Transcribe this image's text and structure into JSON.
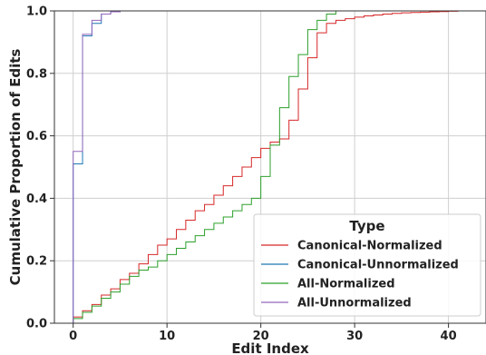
{
  "chart_data": {
    "type": "line",
    "step": true,
    "xlabel": "Edit Index",
    "ylabel": "Cumulative Proportion of Edits",
    "xlim": [
      -2,
      44
    ],
    "ylim": [
      0,
      1.0
    ],
    "xticks": [
      0,
      10,
      20,
      30,
      40
    ],
    "yticks": [
      0.0,
      0.2,
      0.4,
      0.6,
      0.8,
      1.0
    ],
    "xtick_labels": [
      "0",
      "10",
      "20",
      "30",
      "40"
    ],
    "ytick_labels": [
      "0.0",
      "0.2",
      "0.4",
      "0.6",
      "0.8",
      "1.0"
    ],
    "grid": true,
    "legend": {
      "title": "Type",
      "position": "lower-right"
    },
    "series": [
      {
        "name": "Canonical-Normalized",
        "color": "#d62728",
        "x": [
          0,
          1,
          2,
          3,
          4,
          5,
          6,
          7,
          8,
          9,
          10,
          11,
          12,
          13,
          14,
          15,
          16,
          17,
          18,
          19,
          20,
          21,
          22,
          23,
          24,
          25,
          26,
          27,
          28,
          29,
          30,
          31,
          32,
          33,
          34,
          35,
          36,
          37,
          38,
          39,
          40,
          41
        ],
        "y": [
          0.02,
          0.04,
          0.06,
          0.09,
          0.11,
          0.14,
          0.16,
          0.19,
          0.22,
          0.25,
          0.27,
          0.3,
          0.33,
          0.36,
          0.38,
          0.41,
          0.44,
          0.47,
          0.5,
          0.53,
          0.56,
          0.58,
          0.59,
          0.65,
          0.75,
          0.85,
          0.93,
          0.96,
          0.97,
          0.975,
          0.98,
          0.984,
          0.987,
          0.99,
          0.992,
          0.994,
          0.995,
          0.996,
          0.997,
          0.998,
          0.999,
          1.0
        ]
      },
      {
        "name": "Canonical-Unnormalized",
        "color": "#1f77b4",
        "x": [
          0,
          1,
          2,
          3,
          4,
          5
        ],
        "y": [
          0.51,
          0.92,
          0.96,
          0.99,
          0.997,
          1.0
        ]
      },
      {
        "name": "All-Normalized",
        "color": "#2ca02c",
        "x": [
          0,
          1,
          2,
          3,
          4,
          5,
          6,
          7,
          8,
          9,
          10,
          11,
          12,
          13,
          14,
          15,
          16,
          17,
          18,
          19,
          20,
          21,
          22,
          23,
          24,
          25,
          26,
          27,
          28
        ],
        "y": [
          0.015,
          0.035,
          0.055,
          0.08,
          0.1,
          0.125,
          0.15,
          0.17,
          0.18,
          0.2,
          0.22,
          0.24,
          0.26,
          0.28,
          0.3,
          0.32,
          0.34,
          0.36,
          0.38,
          0.4,
          0.47,
          0.57,
          0.69,
          0.79,
          0.86,
          0.94,
          0.97,
          0.99,
          1.0
        ]
      },
      {
        "name": "All-Unnormalized",
        "color": "#9467bd",
        "x": [
          0,
          1,
          2,
          3,
          4,
          5
        ],
        "y": [
          0.55,
          0.925,
          0.97,
          0.99,
          0.997,
          1.0
        ]
      }
    ]
  }
}
